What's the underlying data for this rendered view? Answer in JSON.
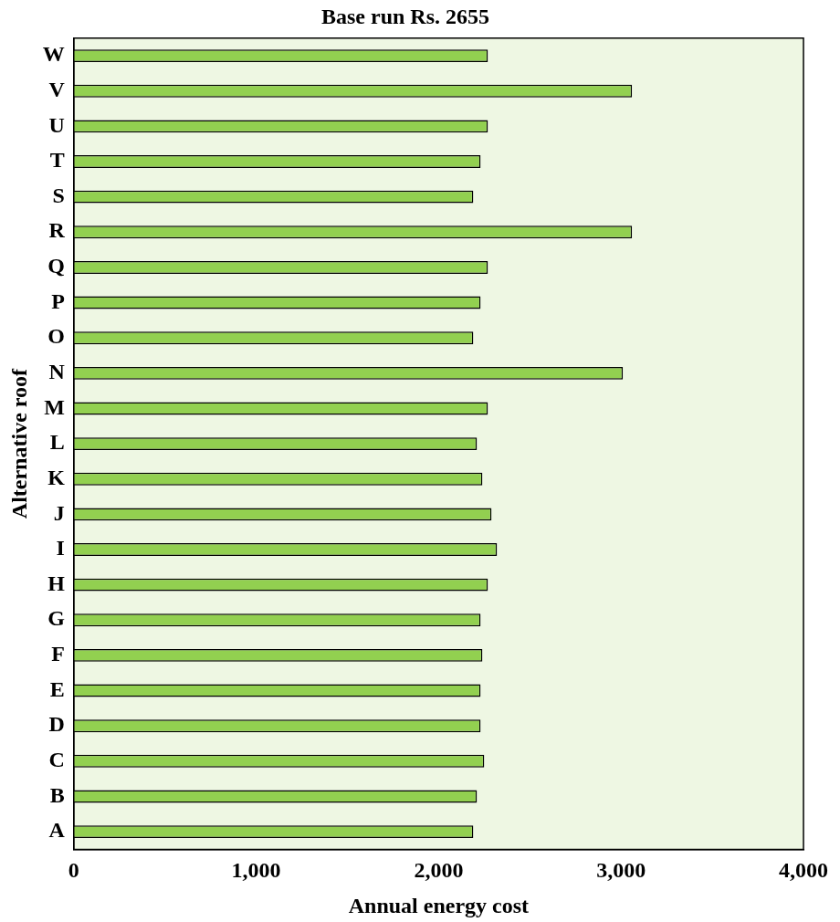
{
  "chart_data": {
    "type": "bar",
    "orientation": "horizontal",
    "title": "Base run Rs. 2655",
    "xlabel": "Annual energy cost",
    "ylabel": "Alternative roof",
    "categories": [
      "W",
      "V",
      "U",
      "T",
      "S",
      "R",
      "Q",
      "P",
      "O",
      "N",
      "M",
      "L",
      "K",
      "J",
      "I",
      "H",
      "G",
      "F",
      "E",
      "D",
      "C",
      "B",
      "A"
    ],
    "series": [
      {
        "color": "#92d050",
        "values": [
          2270,
          3060,
          2270,
          2230,
          2190,
          3060,
          2270,
          2230,
          2190,
          3010,
          2270,
          2210,
          2240,
          2290,
          2320,
          2270,
          2230,
          2240,
          2230,
          2230,
          2250,
          2210,
          2190
        ]
      }
    ],
    "xlim": [
      0,
      4000
    ],
    "xticks": [
      {
        "value": 0,
        "label": "0"
      },
      {
        "value": 1000,
        "label": "1,000"
      },
      {
        "value": 2000,
        "label": "2,000"
      },
      {
        "value": 3000,
        "label": "3,000"
      },
      {
        "value": 4000,
        "label": "4,000"
      }
    ],
    "grid": false,
    "legend": false
  }
}
